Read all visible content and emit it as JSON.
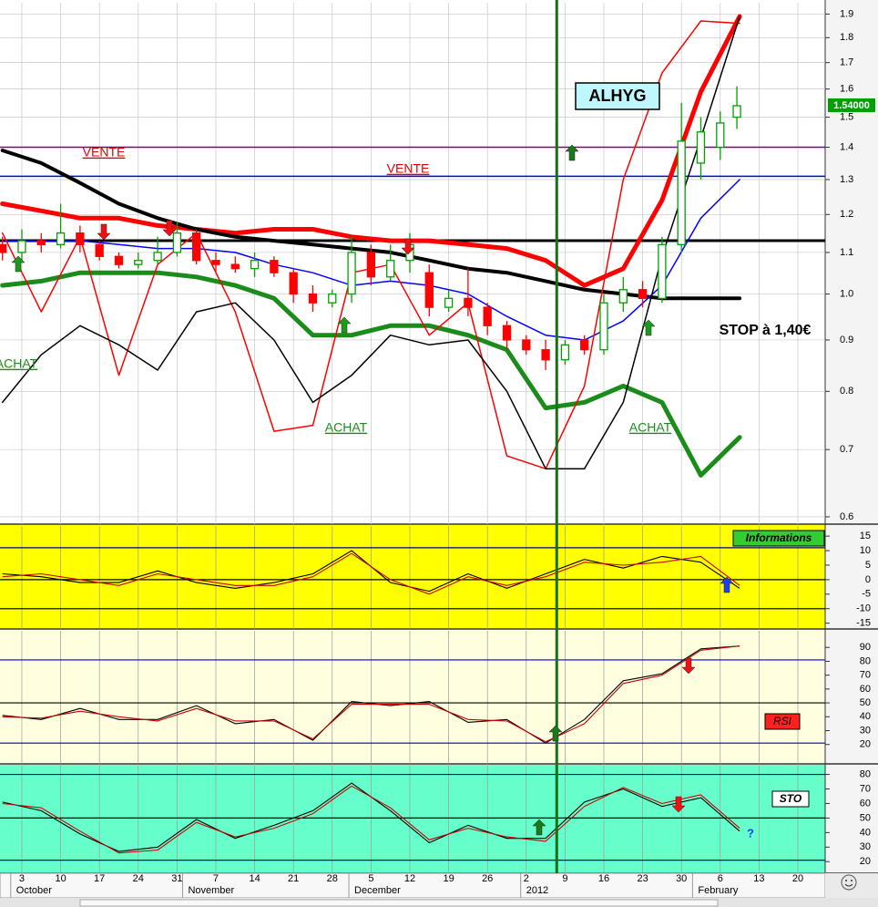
{
  "chart_data": [
    {
      "type": "candlestick",
      "title": "ALHYG",
      "log_scale": true,
      "grid": true,
      "xlim": [
        -3.94,
        144.93
      ],
      "xticks": [
        {
          "value": 0,
          "label": "3"
        },
        {
          "value": 7,
          "label": "10"
        },
        {
          "value": 14,
          "label": "17"
        },
        {
          "value": 21,
          "label": "24"
        },
        {
          "value": 28,
          "label": "31"
        },
        {
          "value": 35,
          "label": "7"
        },
        {
          "value": 42,
          "label": "14"
        },
        {
          "value": 49,
          "label": "21"
        },
        {
          "value": 56,
          "label": "28"
        },
        {
          "value": 63,
          "label": "5"
        },
        {
          "value": 70,
          "label": "12"
        },
        {
          "value": 77,
          "label": "19"
        },
        {
          "value": 84,
          "label": "26"
        },
        {
          "value": 91,
          "label": "2"
        },
        {
          "value": 98,
          "label": "9"
        },
        {
          "value": 105,
          "label": "16"
        },
        {
          "value": 112,
          "label": "23"
        },
        {
          "value": 119,
          "label": "30"
        },
        {
          "value": 126,
          "label": "6"
        },
        {
          "value": 133,
          "label": "13"
        },
        {
          "value": 140,
          "label": "20"
        }
      ],
      "months": [
        {
          "value": -2,
          "label": "October"
        },
        {
          "value": 29,
          "label": "November"
        },
        {
          "value": 59,
          "label": "December"
        },
        {
          "value": 90,
          "label": "2012"
        },
        {
          "value": 121,
          "label": "February"
        }
      ],
      "ylim": [
        0.59,
        1.95
      ],
      "yticks": [
        0.6,
        0.7,
        0.8,
        0.9,
        {
          "value": 1,
          "label": "1.0"
        },
        1.1,
        1.2,
        1.3,
        1.4,
        1.5,
        1.6,
        1.7,
        1.8,
        1.9
      ],
      "up_color": "#00a000",
      "down_color": "#ff0000",
      "x": [
        -3.5,
        0,
        3.5,
        7,
        10.5,
        14,
        17.5,
        21,
        24.5,
        28,
        31.5,
        35,
        38.5,
        42,
        45.5,
        49,
        52.5,
        56,
        59.5,
        63,
        66.5,
        70,
        73.5,
        77,
        80.5,
        84,
        87.5,
        91,
        94.5,
        98,
        101.5,
        105,
        108.5,
        112,
        115.5,
        119,
        122.5,
        126,
        129
      ],
      "open": [
        1.12,
        1.1,
        1.13,
        1.12,
        1.15,
        1.12,
        1.09,
        1.07,
        1.08,
        1.1,
        1.15,
        1.08,
        1.07,
        1.06,
        1.08,
        1.05,
        1.0,
        0.98,
        1.0,
        1.1,
        1.04,
        1.08,
        1.05,
        0.97,
        0.99,
        0.97,
        0.93,
        0.9,
        0.88,
        0.86,
        0.9,
        0.88,
        0.98,
        1.01,
        0.99,
        1.12,
        1.35,
        1.4,
        1.5
      ],
      "high": [
        1.14,
        1.16,
        1.15,
        1.23,
        1.17,
        1.13,
        1.1,
        1.1,
        1.14,
        1.18,
        1.16,
        1.1,
        1.09,
        1.1,
        1.09,
        1.06,
        1.02,
        1.01,
        1.14,
        1.12,
        1.12,
        1.15,
        1.07,
        1.01,
        1.06,
        0.98,
        0.94,
        0.91,
        0.9,
        0.9,
        0.91,
        1.0,
        1.04,
        1.03,
        1.14,
        1.55,
        1.5,
        1.52,
        1.61
      ],
      "low": [
        1.08,
        1.08,
        1.1,
        1.11,
        1.1,
        1.08,
        1.06,
        1.06,
        1.07,
        1.09,
        1.07,
        1.05,
        1.05,
        1.04,
        1.04,
        0.98,
        0.96,
        0.97,
        0.98,
        1.02,
        1.03,
        1.05,
        0.95,
        0.96,
        0.95,
        0.91,
        0.88,
        0.87,
        0.84,
        0.85,
        0.87,
        0.87,
        0.96,
        0.97,
        0.98,
        1.1,
        1.3,
        1.36,
        1.46
      ],
      "close": [
        1.1,
        1.13,
        1.12,
        1.15,
        1.12,
        1.09,
        1.07,
        1.08,
        1.1,
        1.15,
        1.08,
        1.07,
        1.06,
        1.08,
        1.05,
        1.0,
        0.98,
        1.0,
        1.1,
        1.04,
        1.08,
        1.12,
        0.97,
        0.99,
        0.97,
        0.93,
        0.9,
        0.88,
        0.86,
        0.89,
        0.88,
        0.98,
        1.01,
        0.99,
        1.12,
        1.42,
        1.45,
        1.48,
        1.54
      ],
      "overlay": {
        "x": [
          -3.5,
          3.5,
          10.5,
          17.5,
          24.5,
          31.5,
          38.5,
          45.5,
          52.5,
          59.5,
          66.5,
          73.5,
          80.5,
          87.5,
          94.5,
          101.5,
          108.5,
          115.5,
          122.5,
          129.5
        ],
        "series": [
          {
            "color": "#ff0000",
            "width": 5,
            "values": [
              1.23,
              1.21,
              1.19,
              1.19,
              1.17,
              1.16,
              1.15,
              1.16,
              1.16,
              1.14,
              1.13,
              1.13,
              1.12,
              1.11,
              1.08,
              1.02,
              1.06,
              1.24,
              1.59,
              1.89
            ]
          },
          {
            "color": "#1a8c1a",
            "width": 5,
            "values": [
              1.02,
              1.03,
              1.05,
              1.05,
              1.05,
              1.04,
              1.02,
              0.99,
              0.91,
              0.91,
              0.93,
              0.93,
              0.91,
              0.88,
              0.77,
              0.78,
              0.81,
              0.78,
              0.66,
              0.72
            ]
          },
          {
            "color": "#000000",
            "width": 4,
            "values": [
              1.39,
              1.35,
              1.29,
              1.23,
              1.19,
              1.16,
              1.14,
              1.13,
              1.12,
              1.11,
              1.1,
              1.08,
              1.06,
              1.05,
              1.03,
              1.01,
              1.0,
              0.99,
              0.99,
              0.99
            ]
          },
          {
            "color": "#0000ff",
            "width": 1.5,
            "values": [
              1.13,
              1.13,
              1.13,
              1.12,
              1.11,
              1.11,
              1.1,
              1.07,
              1.05,
              1.02,
              1.03,
              1.02,
              1.0,
              0.95,
              0.91,
              0.9,
              0.94,
              1.02,
              1.19,
              1.3
            ]
          },
          {
            "color": "#ff0000",
            "width": 1.5,
            "values": [
              1.15,
              0.96,
              1.14,
              0.83,
              1.07,
              1.15,
              0.96,
              0.73,
              0.74,
              1.05,
              1.07,
              0.91,
              0.98,
              0.69,
              0.67,
              0.81,
              1.3,
              1.66,
              1.87,
              1.86
            ]
          },
          {
            "color": "#000000",
            "width": 1.5,
            "values": [
              0.78,
              0.87,
              0.93,
              0.89,
              0.84,
              0.96,
              0.98,
              0.9,
              0.78,
              0.83,
              0.91,
              0.89,
              0.9,
              0.8,
              0.67,
              0.67,
              0.78,
              1.09,
              1.43,
              1.89
            ]
          }
        ]
      },
      "hlines": [
        {
          "value": 1.4,
          "color": "#800080",
          "width": 1.5
        },
        {
          "value": 1.31,
          "color": "#0000ff",
          "width": 1.5
        },
        {
          "value": 1.13,
          "color": "#000000",
          "width": 3
        }
      ],
      "vline": {
        "value": 96.5,
        "color": "#1a6e1a"
      },
      "price_marker": {
        "value": 1.54,
        "label": "1.54000",
        "color": "#00a000"
      },
      "annotations": [
        "VENTE",
        "VENTE",
        "ACHAT",
        "ACHAT",
        "ACHAT",
        "STOP à 1,40€"
      ]
    },
    {
      "type": "line",
      "title": "Informations",
      "background": "#ffff00",
      "ylim": [
        -17,
        18.5
      ],
      "yticks": [
        15,
        10,
        5,
        0,
        -5,
        -10,
        -15
      ],
      "hlines": [
        {
          "value": 11,
          "color": "#000080"
        },
        {
          "value": 0,
          "color": "#000000"
        },
        {
          "value": -10,
          "color": "#000080"
        }
      ],
      "series": [
        {
          "color": "#000000",
          "values": [
            2,
            1,
            -1,
            -1,
            3,
            -1,
            -3,
            -1,
            2,
            10,
            -1,
            -4,
            2,
            -3,
            2,
            7,
            4,
            8,
            6,
            -3
          ]
        },
        {
          "color": "#cc0000",
          "values": [
            1,
            2,
            0,
            -2,
            2,
            0,
            -2,
            -2,
            1,
            9,
            0,
            -5,
            1,
            -2,
            1,
            6,
            5,
            6,
            8,
            -2
          ]
        }
      ]
    },
    {
      "type": "line",
      "title": "RSI",
      "background": "#ffffe0",
      "ylim": [
        6,
        102
      ],
      "yticks": [
        90,
        80,
        70,
        60,
        50,
        40,
        30,
        20
      ],
      "hlines": [
        {
          "value": 81,
          "color": "#0000cc"
        },
        {
          "value": 50,
          "color": "#000000"
        },
        {
          "value": 21,
          "color": "#0000cc"
        }
      ],
      "series": [
        {
          "color": "#000000",
          "values": [
            41,
            38,
            46,
            38,
            38,
            48,
            35,
            38,
            23,
            51,
            48,
            51,
            36,
            38,
            21,
            38,
            66,
            71,
            89,
            91
          ]
        },
        {
          "color": "#cc0000",
          "values": [
            40,
            39,
            44,
            40,
            37,
            46,
            37,
            37,
            24,
            49,
            49,
            49,
            38,
            37,
            22,
            35,
            64,
            70,
            88,
            91
          ]
        }
      ]
    },
    {
      "type": "line",
      "title": "STO",
      "background": "#66ffcc",
      "annotation": "?",
      "ylim": [
        12,
        86
      ],
      "yticks": [
        80,
        70,
        60,
        50,
        40,
        30,
        20
      ],
      "hlines": [
        {
          "value": 80,
          "color": "#0000cc"
        },
        {
          "value": 50,
          "color": "#000000"
        },
        {
          "value": 21,
          "color": "#0000cc"
        }
      ],
      "series": [
        {
          "color": "#000000",
          "values": [
            61,
            55,
            39,
            27,
            30,
            49,
            36,
            45,
            55,
            74,
            55,
            33,
            45,
            36,
            36,
            61,
            70,
            58,
            64,
            41
          ]
        },
        {
          "color": "#cc0000",
          "values": [
            60,
            57,
            41,
            26,
            28,
            47,
            37,
            43,
            53,
            72,
            57,
            35,
            43,
            37,
            34,
            58,
            71,
            60,
            66,
            43
          ]
        }
      ]
    }
  ]
}
